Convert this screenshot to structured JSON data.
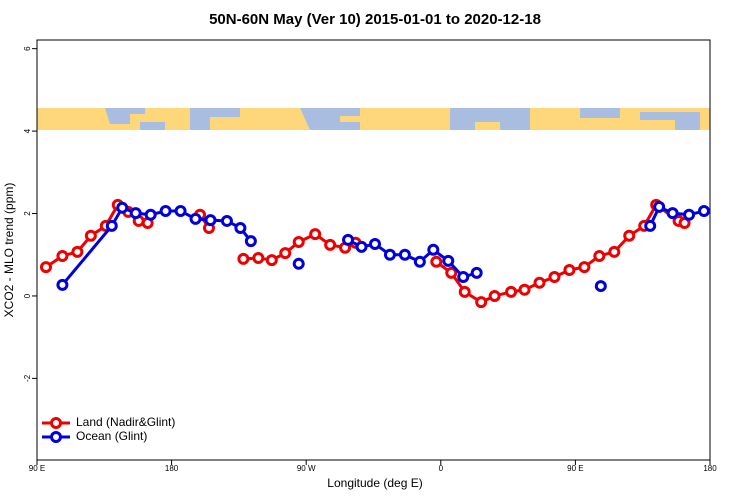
{
  "chart_data": {
    "type": "line",
    "title": "50N-60N May (Ver 10)   2015-01-01 to 2020-12-18",
    "x_label": "Longitude (deg E)",
    "y_label": "XCO2 - MLO trend (ppm)",
    "xlim": [
      90,
      540
    ],
    "xticks": [
      {
        "value": 90,
        "label": "90 E"
      },
      180,
      {
        "value": 270,
        "label": "90 W"
      },
      {
        "value": 360,
        "label": "0"
      },
      {
        "value": 450,
        "label": "90 E"
      },
      {
        "value": 540,
        "label": "180"
      }
    ],
    "ylim": [
      -3.98,
      6.21
    ],
    "yticks": [
      -2,
      0,
      2,
      4,
      6
    ],
    "legend": "bottom left",
    "series": [
      {
        "name": "Land (Nadir&Glint)",
        "color": "#ee0000",
        "x": [
          96,
          107,
          117,
          126,
          136,
          144,
          151,
          158,
          164,
          null,
          199,
          205,
          null,
          228,
          238,
          247,
          256,
          265,
          276,
          286,
          296,
          303,
          null,
          357,
          367,
          376,
          387,
          396,
          407,
          416,
          426,
          436,
          446,
          456,
          466,
          476,
          486,
          496,
          504,
          519,
          523
        ],
        "values": [
          0.7,
          0.97,
          1.07,
          1.46,
          1.7,
          2.21,
          2.04,
          1.82,
          1.77,
          null,
          1.97,
          1.65,
          null,
          0.9,
          0.92,
          0.87,
          1.04,
          1.31,
          1.5,
          1.24,
          1.17,
          1.29,
          null,
          0.83,
          0.56,
          0.1,
          -0.15,
          0.0,
          0.1,
          0.15,
          0.32,
          0.46,
          0.63,
          0.7,
          0.97,
          1.07,
          1.46,
          1.7,
          2.21,
          1.82,
          1.77
        ]
      },
      {
        "name": "Ocean (Glint)",
        "color": "#0000dd",
        "x": [
          107,
          140,
          147,
          156,
          166,
          176,
          186,
          196,
          206,
          217,
          226,
          233,
          null,
          265,
          null,
          298,
          307,
          316,
          326,
          336,
          346,
          355,
          365,
          375,
          384,
          null,
          467,
          null,
          500,
          506,
          515,
          526,
          536
        ],
        "values": [
          0.27,
          1.7,
          2.14,
          2.01,
          1.97,
          2.06,
          2.06,
          1.87,
          1.84,
          1.82,
          1.65,
          1.33,
          null,
          0.78,
          null,
          1.36,
          1.19,
          1.26,
          1.0,
          1.0,
          0.83,
          1.12,
          0.85,
          0.46,
          0.56,
          null,
          0.24,
          null,
          1.7,
          2.16,
          2.01,
          1.97,
          2.06
        ]
      }
    ]
  }
}
